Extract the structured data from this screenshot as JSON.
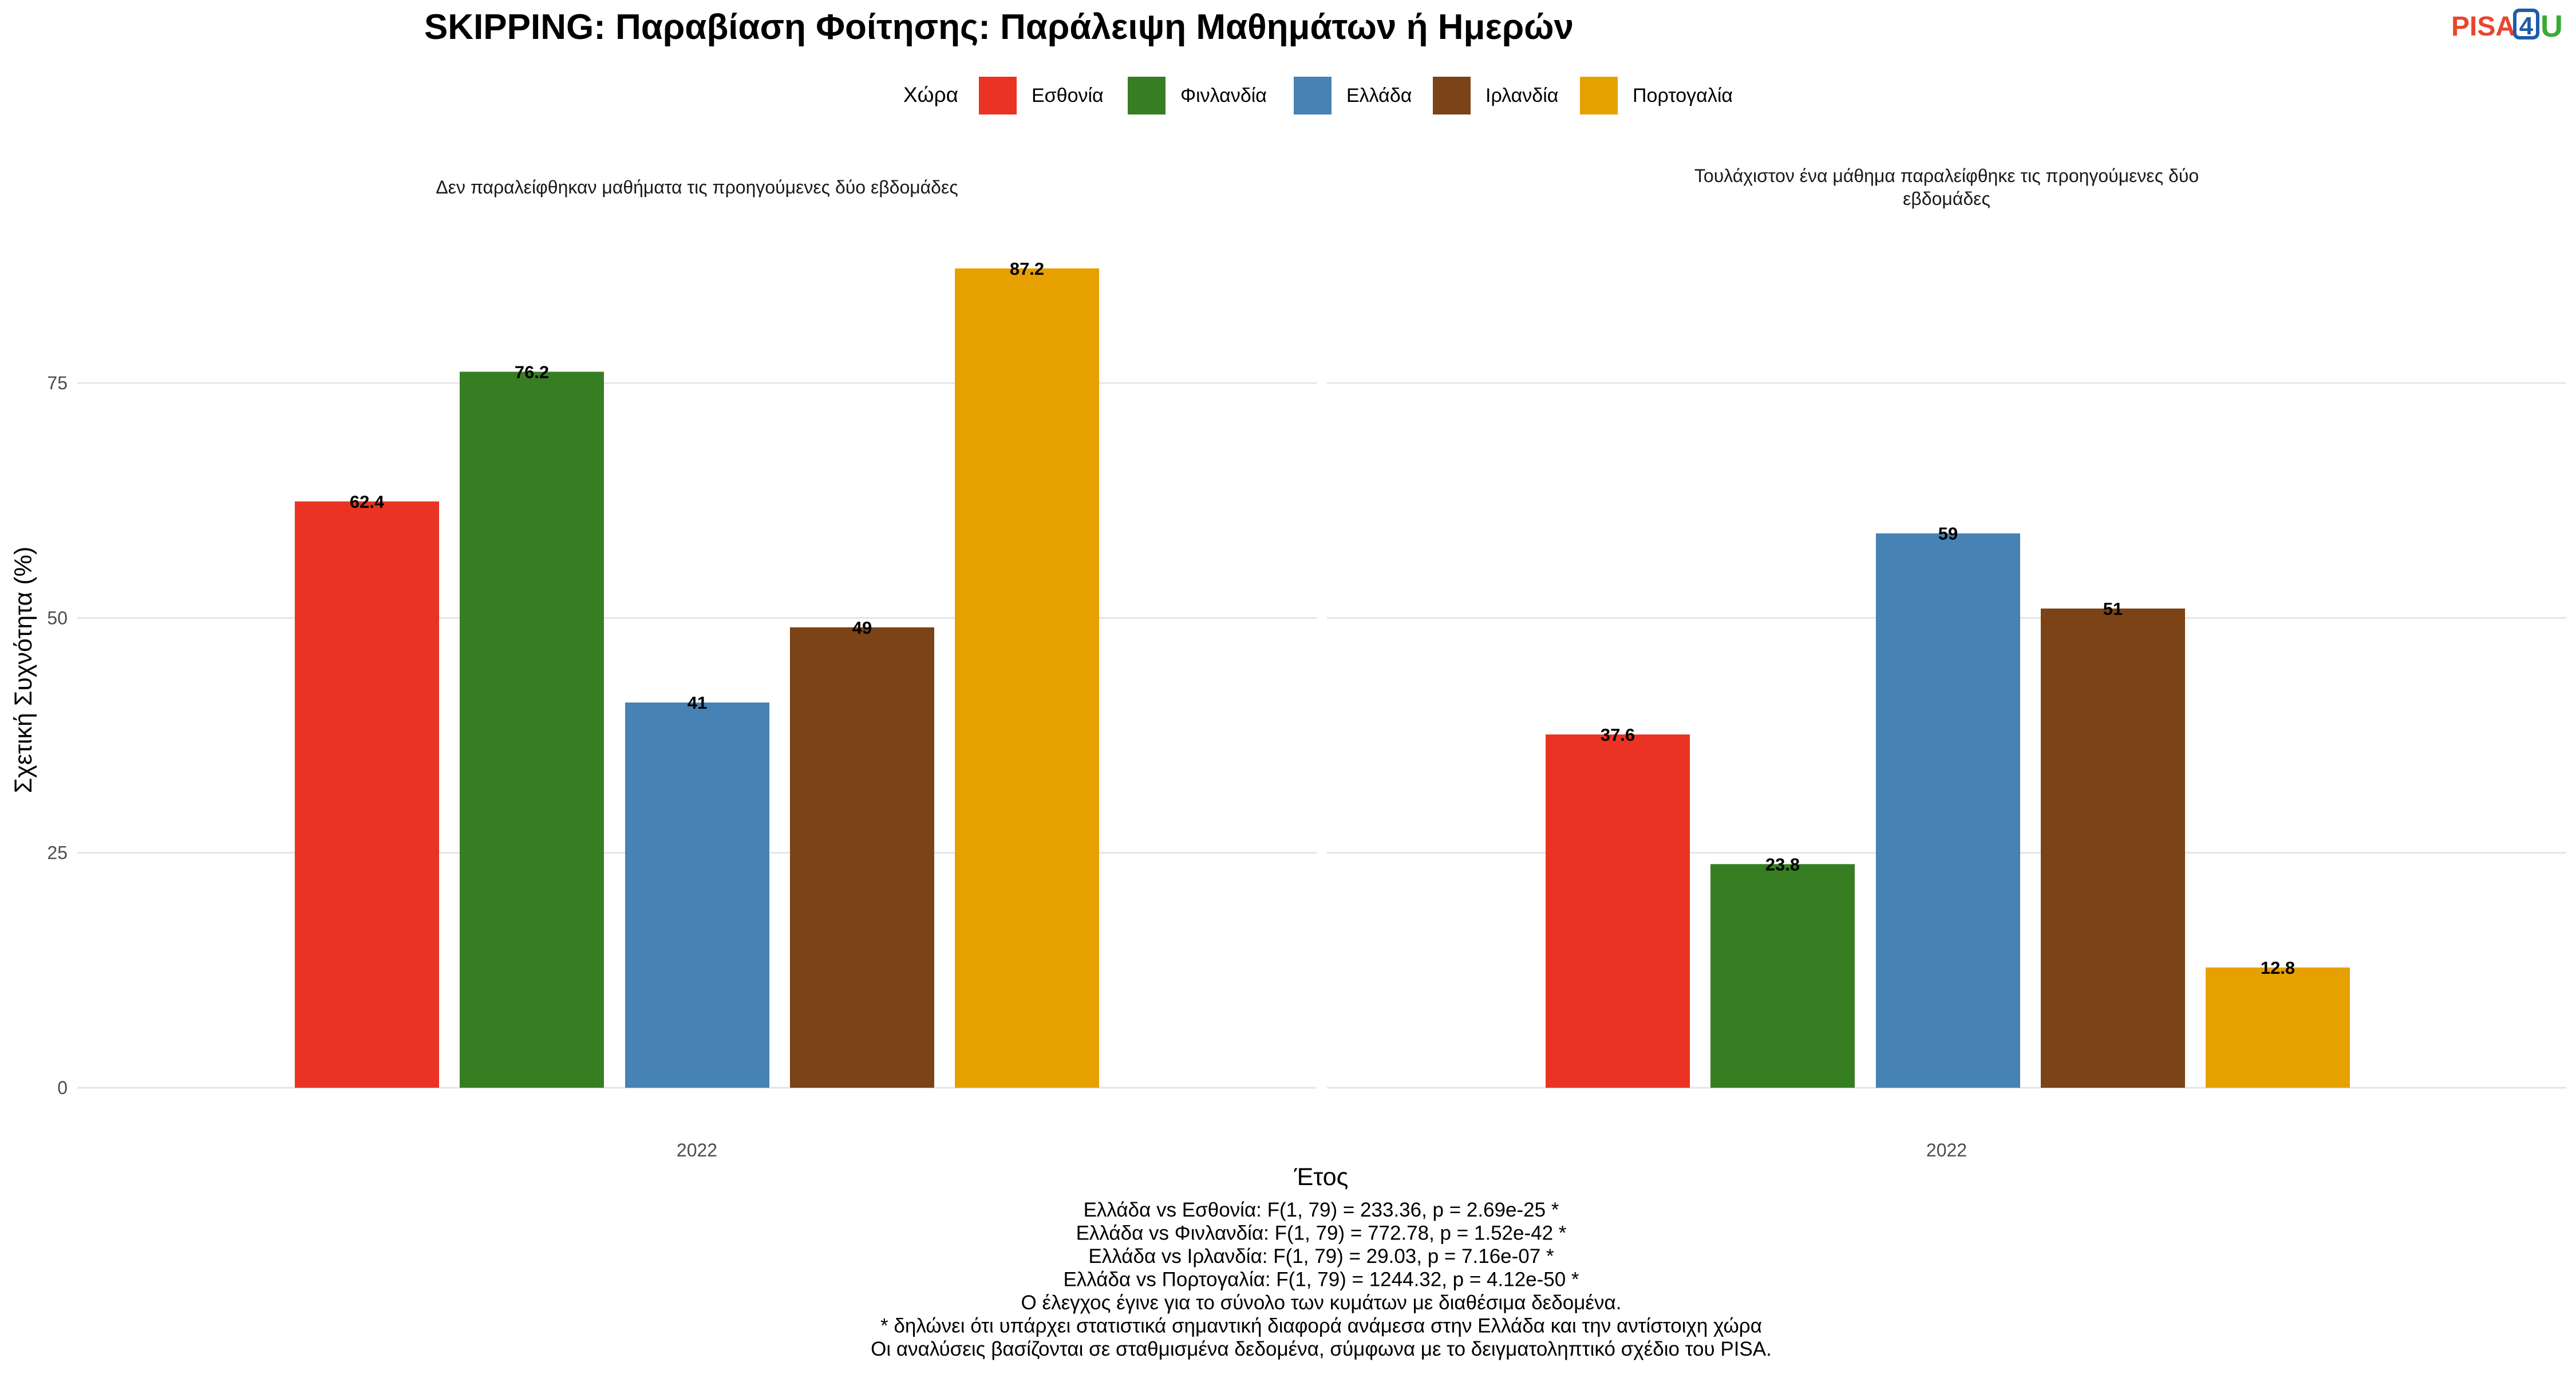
{
  "chart_data": {
    "type": "bar",
    "title": "SKIPPING: Παραβίαση Φοίτησης: Παράλειψη Μαθημάτων ή Ημερών",
    "legend": {
      "title": "Χώρα",
      "placement": "top",
      "entries": [
        {
          "name": "Εσθονία",
          "color": "#EA3323"
        },
        {
          "name": "Φινλανδία",
          "color": "#377E22"
        },
        {
          "name": "Ελλάδα",
          "color": "#4682B4"
        },
        {
          "name": "Ιρλανδία",
          "color": "#7B4316"
        },
        {
          "name": "Πορτογαλία",
          "color": "#E6A100"
        }
      ]
    },
    "xlabel": "Έτος",
    "ylabel": "Σχετική Συχνότητα (%)",
    "ylim": [
      0,
      92
    ],
    "yticks": [
      0,
      25,
      50,
      75
    ],
    "grid": true,
    "facets": [
      {
        "title_lines": [
          "Δεν παραλείφθηκαν μαθήματα τις προηγούμενες δύο εβδομάδες"
        ],
        "category": "2022",
        "values": [
          62.4,
          76.2,
          41,
          49,
          87.2
        ],
        "labels": [
          "62.4",
          "76.2",
          "41",
          "49",
          "87.2"
        ]
      },
      {
        "title_lines": [
          "Τουλάχιστον ένα μάθημα παραλείφθηκε τις προηγούμενες δύο",
          "εβδομάδες"
        ],
        "category": "2022",
        "values": [
          37.6,
          23.8,
          59,
          51,
          12.8
        ],
        "labels": [
          "37.6",
          "23.8",
          "59",
          "51",
          "12.8"
        ]
      }
    ]
  },
  "caption": [
    "Ελλάδα vs Εσθονία: F(1, 79) = 233.36, p = 2.69e-25 *",
    "Ελλάδα vs Φινλανδία: F(1, 79) = 772.78, p = 1.52e-42 *",
    "Ελλάδα vs Ιρλανδία: F(1, 79) = 29.03, p = 7.16e-07 *",
    "Ελλάδα vs Πορτογαλία: F(1, 79) = 1244.32, p = 4.12e-50 *",
    "Ο έλεγχος έγινε για το σύνολο των κυμάτων με διαθέσιμα δεδομένα.",
    "* δηλώνει ότι υπάρχει στατιστικά σημαντική διαφορά ανάμεσα στην Ελλάδα και την αντίστοιχη χώρα",
    "Οι αναλύσεις βασίζονται σε σταθμισμένα δεδομένα, σύμφωνα με το δειγματοληπτικό σχέδιο του PISA."
  ],
  "logo": {
    "part1": "PISA",
    "part2": "4",
    "part3": "U"
  }
}
